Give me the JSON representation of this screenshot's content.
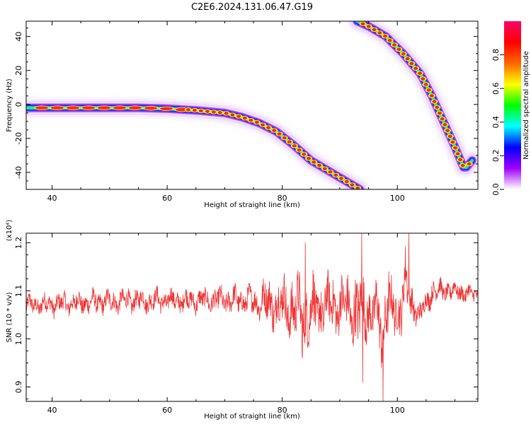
{
  "page": {
    "title": "C2E6.2024.131.06.47.G19"
  },
  "chart_data": [
    {
      "type": "heatmap",
      "description_kind": "spectrogram",
      "xlabel": "Height of straight line (km)",
      "ylabel": "Frequency (Hz)",
      "xlim": [
        35.5,
        114
      ],
      "ylim": [
        -50,
        49
      ],
      "xticks": [
        40,
        60,
        80,
        100
      ],
      "yticks": [
        -40,
        -20,
        0,
        20,
        40
      ],
      "colorbar": {
        "label": "Normalized spectral amplitude",
        "range": [
          0,
          1
        ],
        "ticks": [
          0.0,
          0.2,
          0.4,
          0.6,
          0.8
        ],
        "colormap": [
          "#ffffff",
          "#a000ff",
          "#0000ff",
          "#00ffff",
          "#00ff00",
          "#ffff00",
          "#ff6600",
          "#ff0000",
          "#ff0066"
        ]
      },
      "tracks": [
        {
          "id": "track-main",
          "x": [
            35.5,
            45,
            55,
            60,
            65,
            70,
            73,
            76,
            79,
            82,
            85,
            88,
            91,
            93.5
          ],
          "y": [
            -2,
            -2,
            -2,
            -2.5,
            -3.5,
            -5,
            -7.5,
            -11,
            -16,
            -24,
            -33,
            -39,
            -45,
            -50
          ]
        },
        {
          "id": "track-second",
          "x": [
            93,
            95,
            98,
            101,
            104,
            106,
            108,
            110,
            111,
            111.5,
            112,
            113
          ],
          "y": [
            49,
            46,
            40,
            30,
            18,
            5,
            -10,
            -25,
            -33,
            -37,
            -37,
            -33
          ]
        }
      ]
    },
    {
      "type": "line",
      "description_kind": "signal-to-noise trace",
      "xlabel": "Height of straight line (km)",
      "ylabel": "SNR (10 * v/v)",
      "y_multiplier_label": "(x10⁴)",
      "xlim": [
        35.5,
        114
      ],
      "ylim": [
        0.87,
        1.22
      ],
      "xticks": [
        40,
        60,
        80,
        100
      ],
      "yticks": [
        0.9,
        1.0,
        1.1,
        1.2
      ],
      "series": [
        {
          "color": "#ee3333",
          "envelope": {
            "x": [
              35.5,
              45,
              55,
              65,
              75,
              78,
              80,
              82,
              84,
              86,
              88,
              90,
              92,
              93.5,
              94,
              95,
              97,
              97.5,
              98,
              100,
              101.5,
              102,
              104,
              106,
              108,
              110,
              114
            ],
            "center": [
              1.07,
              1.075,
              1.08,
              1.08,
              1.08,
              1.075,
              1.07,
              1.06,
              1.05,
              1.06,
              1.07,
              1.07,
              1.06,
              1.05,
              1.07,
              1.06,
              1.04,
              1.0,
              1.07,
              1.05,
              1.12,
              1.08,
              1.05,
              1.1,
              1.1,
              1.1,
              1.09
            ],
            "amplitude": [
              0.025,
              0.028,
              0.028,
              0.028,
              0.035,
              0.06,
              0.07,
              0.08,
              0.09,
              0.08,
              0.07,
              0.07,
              0.08,
              0.11,
              0.08,
              0.07,
              0.08,
              0.12,
              0.07,
              0.06,
              0.08,
              0.05,
              0.03,
              0.03,
              0.025,
              0.025,
              0.02
            ]
          },
          "extremes": [
            {
              "x": 83.5,
              "y": 0.96
            },
            {
              "x": 84,
              "y": 1.2
            },
            {
              "x": 93.8,
              "y": 1.22
            },
            {
              "x": 94.0,
              "y": 0.91
            },
            {
              "x": 97.5,
              "y": 0.87
            },
            {
              "x": 98.5,
              "y": 1.14
            },
            {
              "x": 102,
              "y": 1.22
            }
          ]
        }
      ]
    }
  ]
}
